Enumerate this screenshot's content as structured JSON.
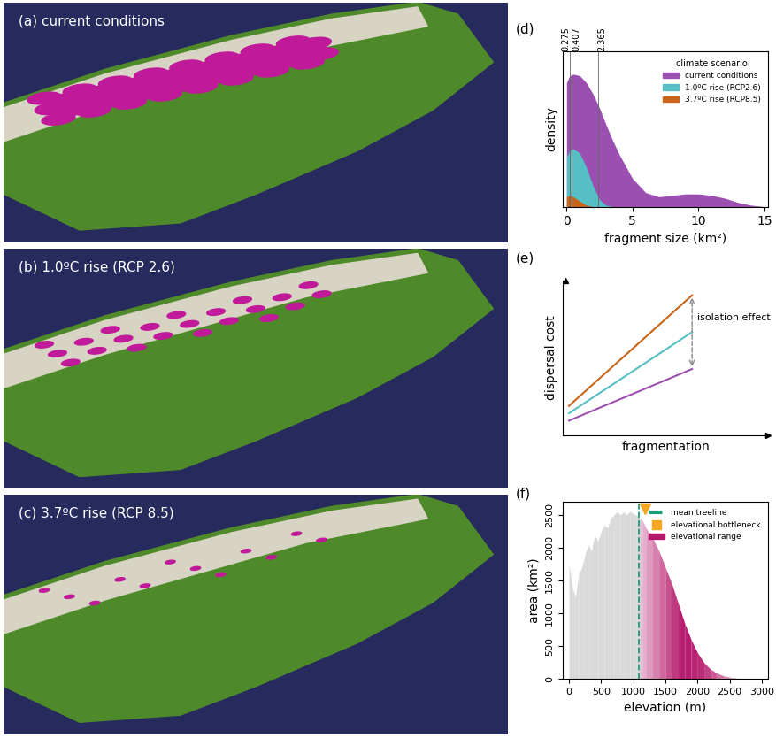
{
  "maps": [
    {
      "label": "(a) current conditions"
    },
    {
      "label": "(b) 1.0ºC rise (RCP 2.6)"
    },
    {
      "label": "(c) 3.7ºC rise (RCP 8.5)"
    }
  ],
  "chart_data": [
    {
      "panel": "(d)",
      "type": "area",
      "x_label": "fragment size (km²)",
      "y_label": "density",
      "x": [
        0,
        0.25,
        0.5,
        1,
        1.5,
        2,
        2.5,
        3,
        3.5,
        4,
        5,
        6,
        7,
        8,
        9,
        10,
        11,
        12,
        13,
        14,
        15
      ],
      "xlim": [
        -0.3,
        15.3
      ],
      "xticks": [
        0,
        5,
        10,
        15
      ],
      "ylim": [
        0,
        1.1
      ],
      "yticks": [],
      "tick_labels": "x",
      "legend": "upper right",
      "legend_title": "climate scenario",
      "reference_lines": [
        0.275,
        0.407,
        2.365
      ],
      "series": [
        {
          "name": "current conditions",
          "color": "#9b4fb0",
          "values": [
            0.88,
            0.93,
            0.94,
            0.93,
            0.88,
            0.8,
            0.7,
            0.58,
            0.47,
            0.37,
            0.2,
            0.1,
            0.07,
            0.08,
            0.09,
            0.09,
            0.08,
            0.06,
            0.03,
            0.01,
            0
          ]
        },
        {
          "name": "1.0ºC rise (RCP2.6)",
          "color": "#56bfc6",
          "values": [
            0.35,
            0.4,
            0.41,
            0.38,
            0.28,
            0.15,
            0.05,
            0.01,
            0,
            0,
            0,
            0,
            0,
            0,
            0,
            0,
            0,
            0,
            0,
            0,
            0
          ]
        },
        {
          "name": "3.7ºC rise (RCP8.5)",
          "color": "#c8651b",
          "values": [
            0.07,
            0.08,
            0.07,
            0.04,
            0.01,
            0,
            0,
            0,
            0,
            0,
            0,
            0,
            0,
            0,
            0,
            0,
            0,
            0,
            0,
            0,
            0
          ]
        }
      ]
    },
    {
      "panel": "(e)",
      "type": "line",
      "x_label": "fragmentation",
      "y_label": "dispersal cost",
      "annotation": "isolation effect",
      "x": [
        0.03,
        1
      ],
      "xlim": [
        -0.02,
        1.6
      ],
      "ylim": [
        0,
        1.05
      ],
      "xticks": [],
      "yticks": [],
      "tick_labels": false,
      "series": [
        {
          "color": "#9b4fb0",
          "values": [
            0.1,
            0.45
          ]
        },
        {
          "color": "#56bfc6",
          "values": [
            0.15,
            0.7
          ]
        },
        {
          "color": "#c8651b",
          "values": [
            0.2,
            0.95
          ]
        }
      ]
    },
    {
      "panel": "(f)",
      "type": "area",
      "x_label": "elevation (m)",
      "y_label": "area (km²)",
      "x": [
        0,
        50,
        100,
        150,
        200,
        250,
        300,
        350,
        400,
        450,
        500,
        550,
        600,
        650,
        700,
        750,
        800,
        850,
        900,
        950,
        1000,
        1050,
        1100,
        1150,
        1200,
        1300,
        1400,
        1500,
        1600,
        1700,
        1800,
        1900,
        2000,
        2100,
        2200,
        2300,
        2400,
        2500,
        2600,
        2700,
        2800,
        2900,
        3000
      ],
      "values": [
        1750,
        1400,
        1250,
        1600,
        1700,
        1900,
        2050,
        1950,
        2200,
        2100,
        2250,
        2350,
        2300,
        2450,
        2500,
        2550,
        2500,
        2550,
        2500,
        2560,
        2520,
        2500,
        2450,
        2400,
        2300,
        2150,
        1950,
        1700,
        1450,
        1150,
        850,
        600,
        400,
        250,
        150,
        90,
        50,
        30,
        15,
        8,
        4,
        2,
        0
      ],
      "color": "#d9d9d9",
      "xlim": [
        -100,
        3100
      ],
      "xticks": [
        0,
        500,
        1000,
        1500,
        2000,
        2500,
        3000
      ],
      "ylim": [
        0,
        2700
      ],
      "yticks": [
        0,
        500,
        1000,
        1500,
        2000,
        2500
      ],
      "legend": "upper right",
      "series": [
        {
          "name": "mean treeline",
          "color": "#1a9e77",
          "value": 1080,
          "line_style": "dashed"
        },
        {
          "name": "elevational bottleneck",
          "color": "#f5a623",
          "value": 1180,
          "marker": "v"
        },
        {
          "name": "elevational range",
          "color": "#b5176b"
        }
      ]
    }
  ]
}
